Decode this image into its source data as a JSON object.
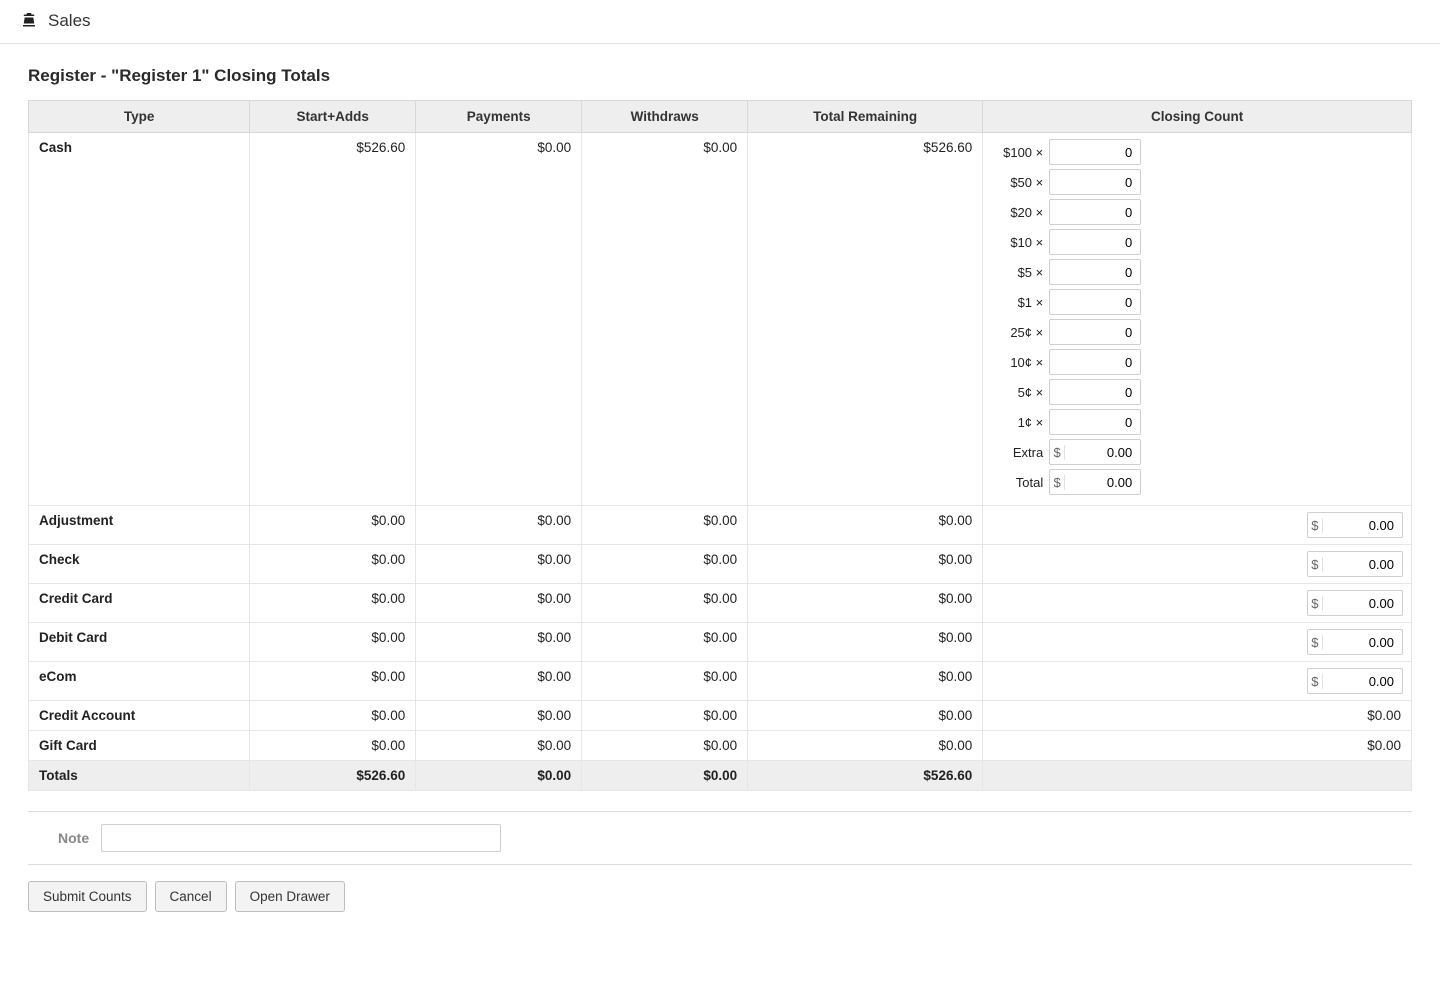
{
  "header": {
    "title": "Sales"
  },
  "page": {
    "title": "Register - \"Register 1\" Closing Totals",
    "note_label": "Note",
    "note_value": ""
  },
  "columns": {
    "type": "Type",
    "start_adds": "Start+Adds",
    "payments": "Payments",
    "withdraws": "Withdraws",
    "total_remaining": "Total Remaining",
    "closing_count": "Closing Count"
  },
  "cash": {
    "type": "Cash",
    "start_adds": "$526.60",
    "payments": "$0.00",
    "withdraws": "$0.00",
    "total_remaining": "$526.60",
    "denominations": [
      {
        "label": "$100 ×",
        "value": "0"
      },
      {
        "label": "$50 ×",
        "value": "0"
      },
      {
        "label": "$20 ×",
        "value": "0"
      },
      {
        "label": "$10 ×",
        "value": "0"
      },
      {
        "label": "$5 ×",
        "value": "0"
      },
      {
        "label": "$1 ×",
        "value": "0"
      },
      {
        "label": "25¢ ×",
        "value": "0"
      },
      {
        "label": "10¢ ×",
        "value": "0"
      },
      {
        "label": "5¢ ×",
        "value": "0"
      },
      {
        "label": "1¢ ×",
        "value": "0"
      }
    ],
    "extra_label": "Extra",
    "extra_value": "0.00",
    "total_label": "Total",
    "total_value": "0.00"
  },
  "simple_rows": [
    {
      "type": "Adjustment",
      "start_adds": "$0.00",
      "payments": "$0.00",
      "withdraws": "$0.00",
      "total_remaining": "$0.00",
      "closing_value": "0.00"
    },
    {
      "type": "Check",
      "start_adds": "$0.00",
      "payments": "$0.00",
      "withdraws": "$0.00",
      "total_remaining": "$0.00",
      "closing_value": "0.00"
    },
    {
      "type": "Credit Card",
      "start_adds": "$0.00",
      "payments": "$0.00",
      "withdraws": "$0.00",
      "total_remaining": "$0.00",
      "closing_value": "0.00"
    },
    {
      "type": "Debit Card",
      "start_adds": "$0.00",
      "payments": "$0.00",
      "withdraws": "$0.00",
      "total_remaining": "$0.00",
      "closing_value": "0.00"
    },
    {
      "type": "eCom",
      "start_adds": "$0.00",
      "payments": "$0.00",
      "withdraws": "$0.00",
      "total_remaining": "$0.00",
      "closing_value": "0.00"
    }
  ],
  "readonly_rows": [
    {
      "type": "Credit Account",
      "start_adds": "$0.00",
      "payments": "$0.00",
      "withdraws": "$0.00",
      "total_remaining": "$0.00",
      "closing_value": "$0.00"
    },
    {
      "type": "Gift Card",
      "start_adds": "$0.00",
      "payments": "$0.00",
      "withdraws": "$0.00",
      "total_remaining": "$0.00",
      "closing_value": "$0.00"
    }
  ],
  "totals": {
    "label": "Totals",
    "start_adds": "$526.60",
    "payments": "$0.00",
    "withdraws": "$0.00",
    "total_remaining": "$526.60"
  },
  "actions": {
    "submit": "Submit Counts",
    "cancel": "Cancel",
    "open_drawer": "Open Drawer"
  }
}
